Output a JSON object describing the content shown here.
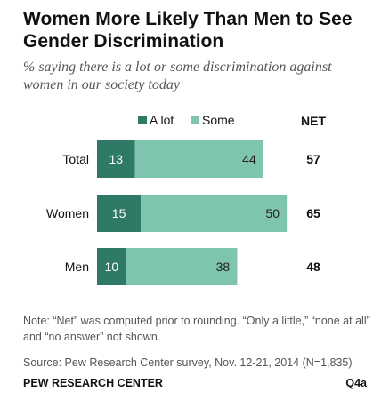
{
  "header": {
    "title": "Women More Likely Than Men to See Gender Discrimination",
    "subtitle": "% saying there is a lot or some discrimination against women in our society today"
  },
  "footer": {
    "note": "Note: “Net” was computed prior to rounding. “Only a little,” “none at all” and “no answer” not shown.",
    "source": "Source: Pew Research Center survey, Nov. 12-21, 2014 (N=1,835)",
    "org": "PEW RESEARCH CENTER",
    "code": "Q4a"
  },
  "chart_data": {
    "type": "bar",
    "orientation": "horizontal",
    "stacked": true,
    "categories": [
      "Total",
      "Women",
      "Men"
    ],
    "series": [
      {
        "name": "A lot",
        "values": [
          13,
          15,
          10
        ],
        "color": "#2f7a66"
      },
      {
        "name": "Some",
        "values": [
          44,
          50,
          38
        ],
        "color": "#7fc4ae"
      }
    ],
    "net": {
      "label": "NET",
      "values": [
        57,
        65,
        48
      ]
    },
    "xlim": [
      0,
      65
    ],
    "grid": false,
    "legend_position": "top"
  }
}
